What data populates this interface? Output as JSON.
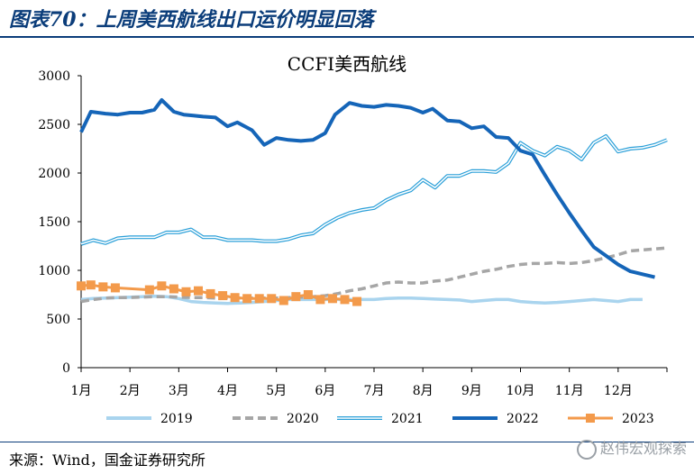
{
  "figure": {
    "title": "图表70：上周美西航线出口运价明显回落",
    "source": "来源：Wind，国金证券研究所",
    "watermark": "赵伟宏观探索"
  },
  "chart_data": {
    "type": "line",
    "title": "CCFI美西航线",
    "xlabel": "",
    "ylabel": "",
    "ylim": [
      0,
      3000
    ],
    "yticks": [
      0,
      500,
      1000,
      1500,
      2000,
      2500,
      3000
    ],
    "xlim": [
      1,
      13
    ],
    "xticks": [
      {
        "v": 1,
        "label": "1月"
      },
      {
        "v": 2,
        "label": "2月"
      },
      {
        "v": 3,
        "label": "3月"
      },
      {
        "v": 4,
        "label": "4月"
      },
      {
        "v": 5,
        "label": "5月"
      },
      {
        "v": 6,
        "label": "6月"
      },
      {
        "v": 7,
        "label": "7月"
      },
      {
        "v": 8,
        "label": "8月"
      },
      {
        "v": 9,
        "label": "9月"
      },
      {
        "v": 10,
        "label": "10月"
      },
      {
        "v": 11,
        "label": "11月"
      },
      {
        "v": 12,
        "label": "12月"
      }
    ],
    "grid": false,
    "legend": "bottom",
    "series": [
      {
        "name": "2019",
        "color": "#a9d4ee",
        "style": "solid-light",
        "x": [
          1,
          1.25,
          1.5,
          1.75,
          2,
          2.25,
          2.5,
          2.75,
          3,
          3.25,
          3.5,
          3.75,
          4,
          4.25,
          4.5,
          4.75,
          5,
          5.25,
          5.5,
          5.75,
          6,
          6.25,
          6.5,
          6.75,
          7,
          7.25,
          7.5,
          7.75,
          8,
          8.25,
          8.5,
          8.75,
          9,
          9.25,
          9.5,
          9.75,
          10,
          10.25,
          10.5,
          10.75,
          11,
          11.25,
          11.5,
          11.75,
          12,
          12.25,
          12.5
        ],
        "y": [
          700,
          710,
          715,
          720,
          725,
          730,
          735,
          730,
          710,
          680,
          670,
          665,
          660,
          665,
          670,
          680,
          690,
          700,
          700,
          700,
          700,
          700,
          700,
          700,
          700,
          710,
          715,
          715,
          710,
          705,
          700,
          695,
          680,
          690,
          700,
          700,
          680,
          670,
          665,
          670,
          680,
          690,
          700,
          690,
          680,
          700,
          700
        ]
      },
      {
        "name": "2020",
        "color": "#a6a6a6",
        "style": "dashed",
        "x": [
          1,
          1.25,
          1.5,
          1.75,
          2,
          2.25,
          2.5,
          2.75,
          3,
          3.25,
          3.5,
          3.75,
          4,
          4.25,
          4.5,
          4.75,
          5,
          5.25,
          5.5,
          5.75,
          6,
          6.25,
          6.5,
          6.75,
          7,
          7.25,
          7.5,
          7.75,
          8,
          8.25,
          8.5,
          8.75,
          9,
          9.25,
          9.5,
          9.75,
          10,
          10.25,
          10.5,
          10.75,
          11,
          11.25,
          11.5,
          11.75,
          12,
          12.25,
          12.5,
          12.75,
          13
        ],
        "y": [
          680,
          700,
          715,
          720,
          720,
          725,
          730,
          730,
          725,
          720,
          720,
          715,
          715,
          715,
          715,
          715,
          715,
          720,
          725,
          730,
          740,
          760,
          790,
          810,
          840,
          870,
          880,
          870,
          870,
          890,
          900,
          930,
          960,
          990,
          1010,
          1040,
          1060,
          1070,
          1070,
          1080,
          1070,
          1080,
          1100,
          1130,
          1160,
          1200,
          1210,
          1220,
          1230
        ]
      },
      {
        "name": "2021",
        "color": "#2a9fd8",
        "style": "double",
        "x": [
          1,
          1.25,
          1.5,
          1.75,
          2,
          2.25,
          2.5,
          2.75,
          3,
          3.25,
          3.5,
          3.75,
          4,
          4.25,
          4.5,
          4.75,
          5,
          5.25,
          5.5,
          5.75,
          6,
          6.25,
          6.5,
          6.75,
          7,
          7.25,
          7.5,
          7.75,
          8,
          8.25,
          8.5,
          8.75,
          9,
          9.25,
          9.5,
          9.75,
          10,
          10.25,
          10.5,
          10.75,
          11,
          11.25,
          11.5,
          11.75,
          12,
          12.25,
          12.5,
          12.75,
          13
        ],
        "y": [
          1270,
          1310,
          1280,
          1330,
          1340,
          1340,
          1340,
          1390,
          1390,
          1420,
          1340,
          1340,
          1310,
          1310,
          1310,
          1300,
          1300,
          1320,
          1360,
          1380,
          1470,
          1540,
          1590,
          1620,
          1640,
          1720,
          1780,
          1820,
          1930,
          1850,
          1970,
          1970,
          2020,
          2020,
          2010,
          2100,
          2310,
          2230,
          2180,
          2270,
          2230,
          2140,
          2310,
          2380,
          2220,
          2250,
          2260,
          2290,
          2340
        ]
      },
      {
        "name": "2022",
        "color": "#1565b8",
        "style": "thick",
        "x": [
          1,
          1.2,
          1.5,
          1.75,
          2,
          2.25,
          2.5,
          2.65,
          2.9,
          3.1,
          3.3,
          3.5,
          3.75,
          4,
          4.2,
          4.5,
          4.75,
          5,
          5.25,
          5.5,
          5.75,
          6,
          6.2,
          6.5,
          6.75,
          7,
          7.25,
          7.5,
          7.75,
          8,
          8.2,
          8.5,
          8.75,
          9,
          9.25,
          9.5,
          9.75,
          10,
          10.25,
          10.5,
          10.75,
          11,
          11.25,
          11.5,
          11.75,
          12,
          12.25,
          12.5,
          12.75
        ],
        "y": [
          2420,
          2630,
          2610,
          2600,
          2620,
          2620,
          2650,
          2750,
          2630,
          2600,
          2590,
          2580,
          2570,
          2480,
          2520,
          2440,
          2290,
          2360,
          2340,
          2330,
          2340,
          2410,
          2600,
          2720,
          2690,
          2680,
          2700,
          2690,
          2670,
          2620,
          2660,
          2540,
          2530,
          2460,
          2480,
          2370,
          2360,
          2230,
          2190,
          1980,
          1780,
          1590,
          1410,
          1240,
          1150,
          1060,
          990,
          960,
          930
        ]
      },
      {
        "name": "2023",
        "color": "#f39a4b",
        "style": "square-marker",
        "x": [
          1,
          1.2,
          1.45,
          1.7,
          2.4,
          2.65,
          2.9,
          3.15,
          3.4,
          3.65,
          3.9,
          4.15,
          4.4,
          4.65,
          4.9,
          5.15,
          5.4,
          5.65,
          5.9,
          6.15,
          6.4,
          6.65
        ],
        "y": [
          840,
          850,
          830,
          820,
          800,
          840,
          810,
          780,
          790,
          760,
          740,
          720,
          710,
          710,
          710,
          690,
          730,
          750,
          700,
          710,
          700,
          680
        ]
      }
    ]
  }
}
